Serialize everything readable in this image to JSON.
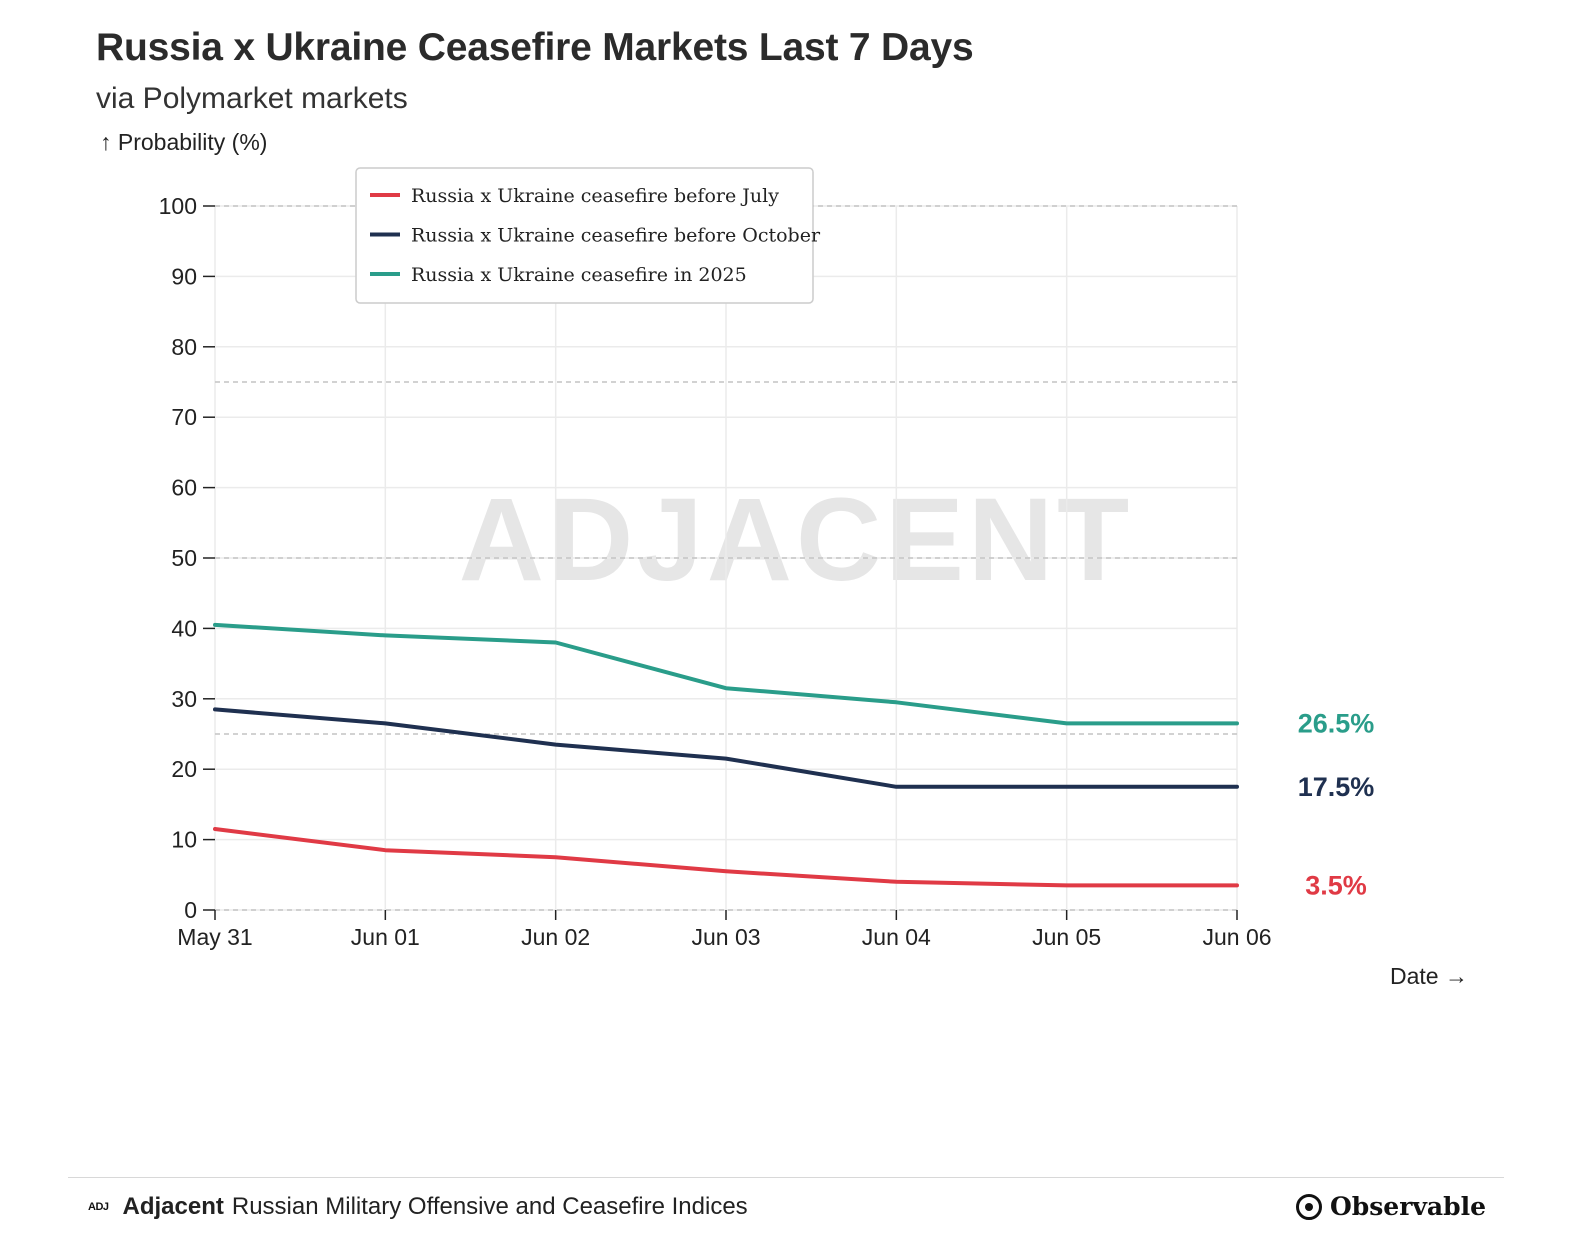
{
  "header": {
    "title": "Russia x Ukraine Ceasefire Markets Last 7 Days",
    "subtitle": "via Polymarket markets"
  },
  "chart_data": {
    "type": "line",
    "ylabel": "↑ Probability (%)",
    "xlabel": "Date →",
    "ylim": [
      0,
      100
    ],
    "yticks": [
      0,
      10,
      20,
      30,
      40,
      50,
      60,
      70,
      80,
      90,
      100
    ],
    "reference_lines": [
      25,
      50,
      75,
      100
    ],
    "grid": true,
    "legend_position": "top-left",
    "watermark": "ADJACENT",
    "categories": [
      "May 31",
      "Jun 01",
      "Jun 02",
      "Jun 03",
      "Jun 04",
      "Jun 05",
      "Jun 06"
    ],
    "series": [
      {
        "name": "Russia x Ukraine ceasefire before July",
        "color": "#e03a45",
        "values": [
          11.5,
          8.5,
          7.5,
          5.5,
          4.0,
          3.5,
          3.5
        ],
        "end_label": "3.5%"
      },
      {
        "name": "Russia x Ukraine ceasefire before October",
        "color": "#1f3050",
        "values": [
          28.5,
          26.5,
          23.5,
          21.5,
          17.5,
          17.5,
          17.5
        ],
        "end_label": "17.5%"
      },
      {
        "name": "Russia x Ukraine ceasefire in 2025",
        "color": "#2a9d8a",
        "values": [
          40.5,
          39.0,
          38.0,
          31.5,
          29.5,
          26.5,
          26.5
        ],
        "end_label": "26.5%"
      }
    ]
  },
  "footer": {
    "logo_text": "ADJ",
    "brand": "Adjacent",
    "description": "Russian Military Offensive and Ceasefire Indices",
    "credit": "Observable"
  }
}
